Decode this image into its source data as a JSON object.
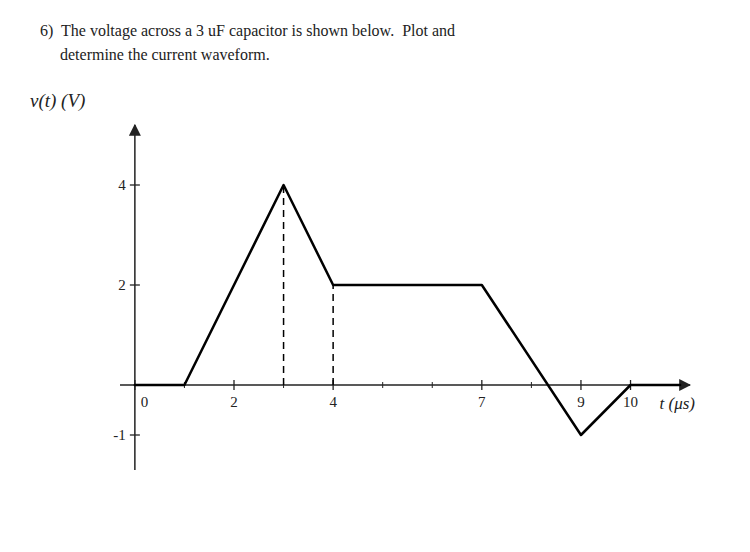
{
  "chart_data": {
    "type": "line",
    "title": "6)  The voltage across a 3 uF capacitor is shown below.  Plot and",
    "subtitle": "     determine the current waveform.",
    "y_label": "v(t) (V)",
    "x_label": "t (μs)",
    "x": [
      0,
      1,
      3,
      4,
      7,
      9,
      10,
      11
    ],
    "values": [
      0,
      0,
      4,
      2,
      2,
      -1,
      0,
      0
    ],
    "color": "#000000",
    "annotations": [
      {
        "x": 3,
        "y_start": 0,
        "y_end": 4,
        "line_style": "dashed",
        "color": "#000000"
      },
      {
        "x": 4,
        "y_start": 0,
        "y_end": 2,
        "line_style": "dashed",
        "color": "#000000"
      }
    ],
    "xlim": [
      -0.3,
      11.2
    ],
    "ylim": [
      -1.7,
      5.2
    ],
    "xticks": [
      0,
      2,
      4,
      7,
      9,
      10
    ],
    "xticks_minor": [
      1,
      3,
      5,
      6,
      8
    ],
    "yticks": [
      -1,
      2,
      4
    ],
    "grid": false
  }
}
